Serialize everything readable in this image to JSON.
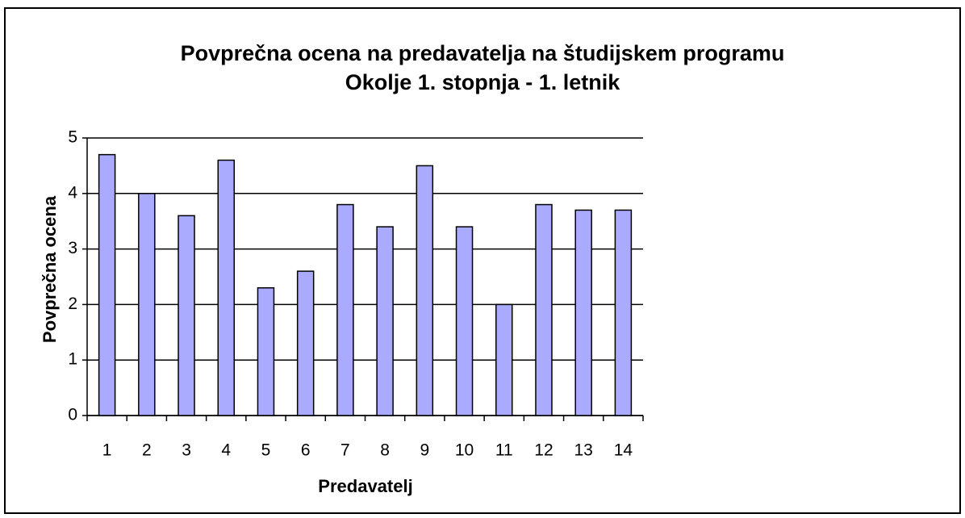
{
  "chart_data": {
    "type": "bar",
    "title": [
      "Povprečna ocena na predavatelja na študijskem programu",
      "Okolje 1. stopnja - 1. letnik"
    ],
    "x_label": "Predavatelj",
    "y_label": "Povprečna ocena",
    "categories": [
      "1",
      "2",
      "3",
      "4",
      "5",
      "6",
      "7",
      "8",
      "9",
      "10",
      "11",
      "12",
      "13",
      "14"
    ],
    "values": [
      4.7,
      4.0,
      3.6,
      4.6,
      2.3,
      2.6,
      3.8,
      3.4,
      4.5,
      3.4,
      2.0,
      3.8,
      3.7,
      3.7
    ],
    "color": "#aaaaff",
    "ylim": [
      0,
      5
    ],
    "yticks": [
      0,
      1,
      2,
      3,
      4,
      5
    ],
    "grid": true
  }
}
